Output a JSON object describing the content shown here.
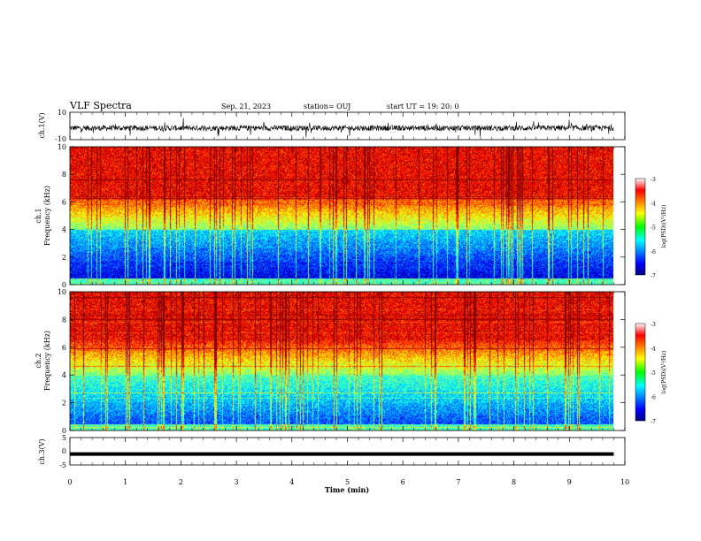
{
  "header": {
    "title": "VLF Spectra",
    "date": "Sep. 21, 2023",
    "station": "station= OUJ",
    "start_ut": "start UT =  19: 20: 0"
  },
  "chart_data": [
    {
      "type": "line",
      "name": "waveform-ch1",
      "ylabel": "ch.1(V)",
      "ylim": [
        -10,
        10
      ],
      "yticks": [
        "10",
        "-10"
      ],
      "xlim": [
        0,
        10
      ],
      "description_level": -1.5
    },
    {
      "type": "heatmap",
      "name": "spectrogram-ch1",
      "ylabel_line1": "ch.1",
      "ylabel_line2": "Frequency (kHz)",
      "ylim": [
        0,
        10
      ],
      "yticks": [
        "0",
        "2",
        "4",
        "6",
        "8",
        "10"
      ],
      "xlim": [
        0,
        9.8
      ],
      "colorbar": {
        "label": "log(PSD)(V²/Hz)",
        "ticks": [
          "-3",
          "-4",
          "-5",
          "-6",
          "-7"
        ],
        "range": [
          -7,
          -3
        ]
      }
    },
    {
      "type": "heatmap",
      "name": "spectrogram-ch2",
      "ylabel_line1": "ch.2",
      "ylabel_line2": "Frequency (kHz)",
      "ylim": [
        0,
        10
      ],
      "yticks": [
        "0",
        "2",
        "4",
        "6",
        "8",
        "10"
      ],
      "xlim": [
        0,
        9.8
      ],
      "colorbar": {
        "label": "log(PSD)(V²/Hz)",
        "ticks": [
          "-3",
          "-4",
          "-5",
          "-6",
          "-7"
        ],
        "range": [
          -7,
          -3
        ]
      }
    },
    {
      "type": "line",
      "name": "waveform-ch3",
      "ylabel": "ch.3(V)",
      "ylim": [
        -5,
        5
      ],
      "yticks": [
        "5",
        "0",
        "-5"
      ],
      "xlim": [
        0,
        10
      ],
      "level": -1
    }
  ],
  "xaxis": {
    "label": "Time (min)",
    "ticks": [
      "0",
      "1",
      "2",
      "3",
      "4",
      "5",
      "6",
      "7",
      "8",
      "9",
      "10"
    ]
  }
}
